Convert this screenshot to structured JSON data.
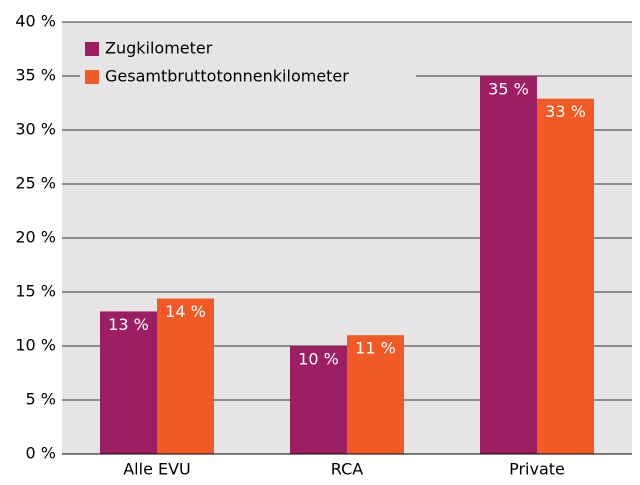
{
  "chart_data": {
    "type": "bar",
    "categories": [
      "Alle EVU",
      "RCA",
      "Private"
    ],
    "series": [
      {
        "name": "Zugkilometer",
        "color": "#9c1f64",
        "values": [
          13.2,
          10.0,
          35.0
        ],
        "value_labels": [
          "13 %",
          "10 %",
          "35 %"
        ]
      },
      {
        "name": "Gesamtbruttotonnenkilometer",
        "color": "#f15a24",
        "values": [
          14.4,
          11.0,
          32.9
        ],
        "value_labels": [
          "14 %",
          "11 %",
          "33 %"
        ]
      }
    ],
    "ylim": [
      0,
      40
    ],
    "yticks": [
      {
        "value": 0,
        "label": "0 %"
      },
      {
        "value": 5,
        "label": "5 %"
      },
      {
        "value": 10,
        "label": "10 %"
      },
      {
        "value": 15,
        "label": "15 %"
      },
      {
        "value": 20,
        "label": "20 %"
      },
      {
        "value": 25,
        "label": "25 %"
      },
      {
        "value": 30,
        "label": "30 %"
      },
      {
        "value": 35,
        "label": "35 %"
      },
      {
        "value": 40,
        "label": "40 %"
      }
    ],
    "grid": true,
    "legend": "top-left"
  }
}
